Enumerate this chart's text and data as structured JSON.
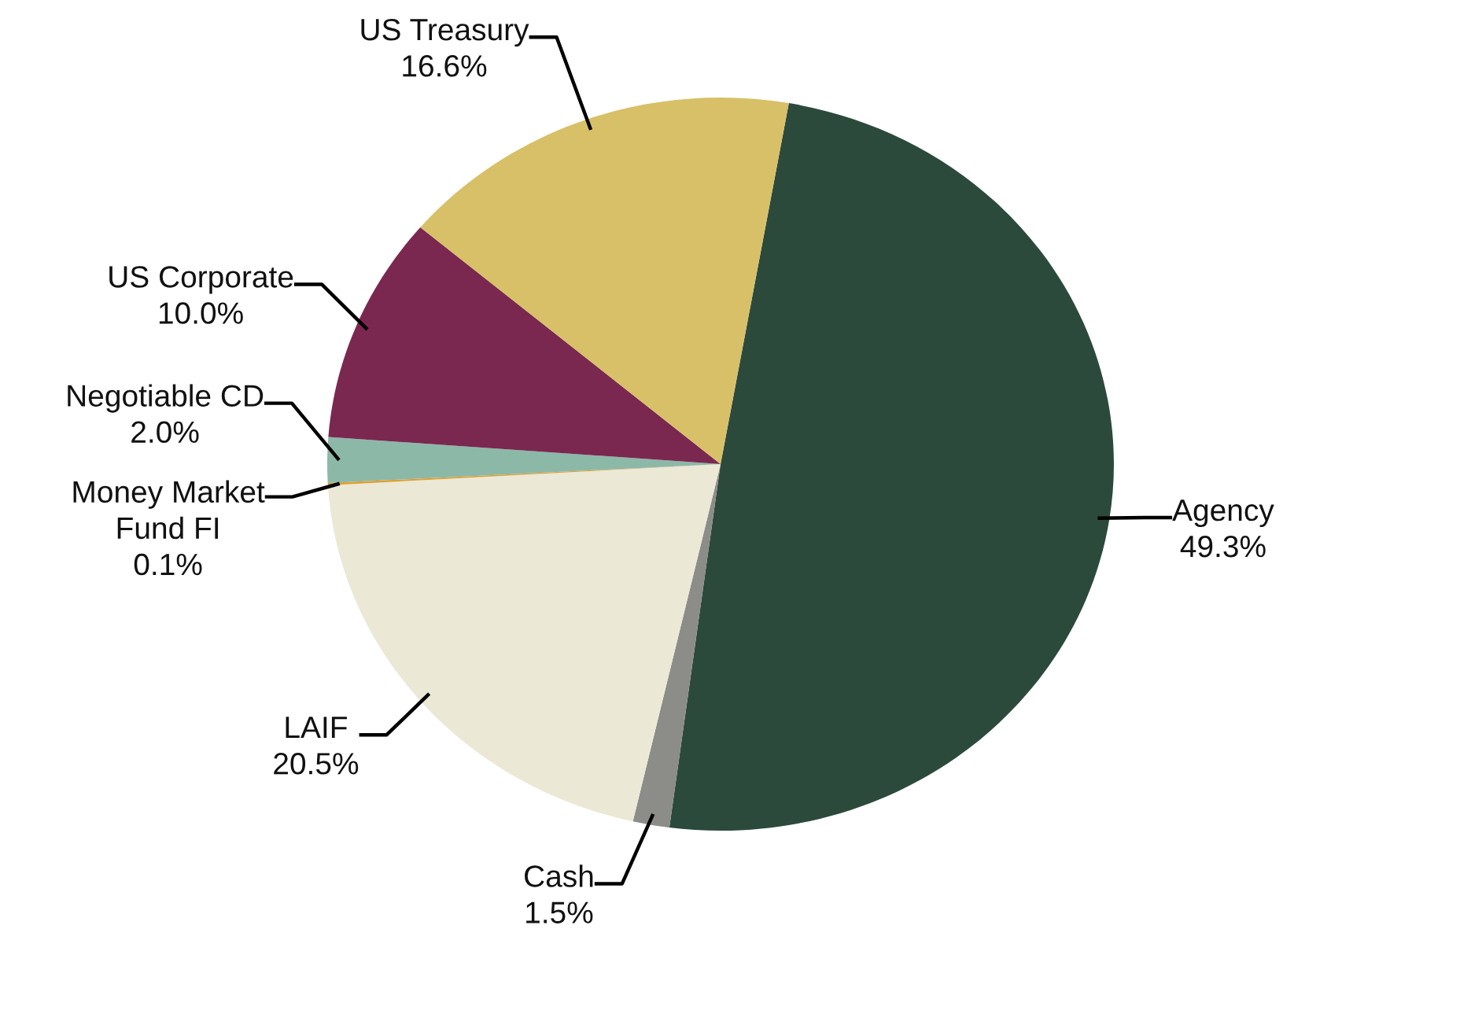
{
  "chart_data": {
    "type": "pie",
    "categories": [
      "Agency",
      "Cash",
      "LAIF",
      "Money Market Fund FI",
      "Negotiable CD",
      "US Corporate",
      "US Treasury"
    ],
    "values": [
      49.3,
      1.5,
      20.5,
      0.1,
      2.0,
      10.0,
      16.6
    ],
    "colors": [
      "#2c4a3c",
      "#8c8c88",
      "#ebe8d6",
      "#e0a030",
      "#8cb8a8",
      "#7a2850",
      "#d8c068"
    ],
    "value_labels": [
      "49.3%",
      "1.5%",
      "20.5%",
      "0.1%",
      "2.0%",
      "10.0%",
      "16.6%"
    ]
  }
}
